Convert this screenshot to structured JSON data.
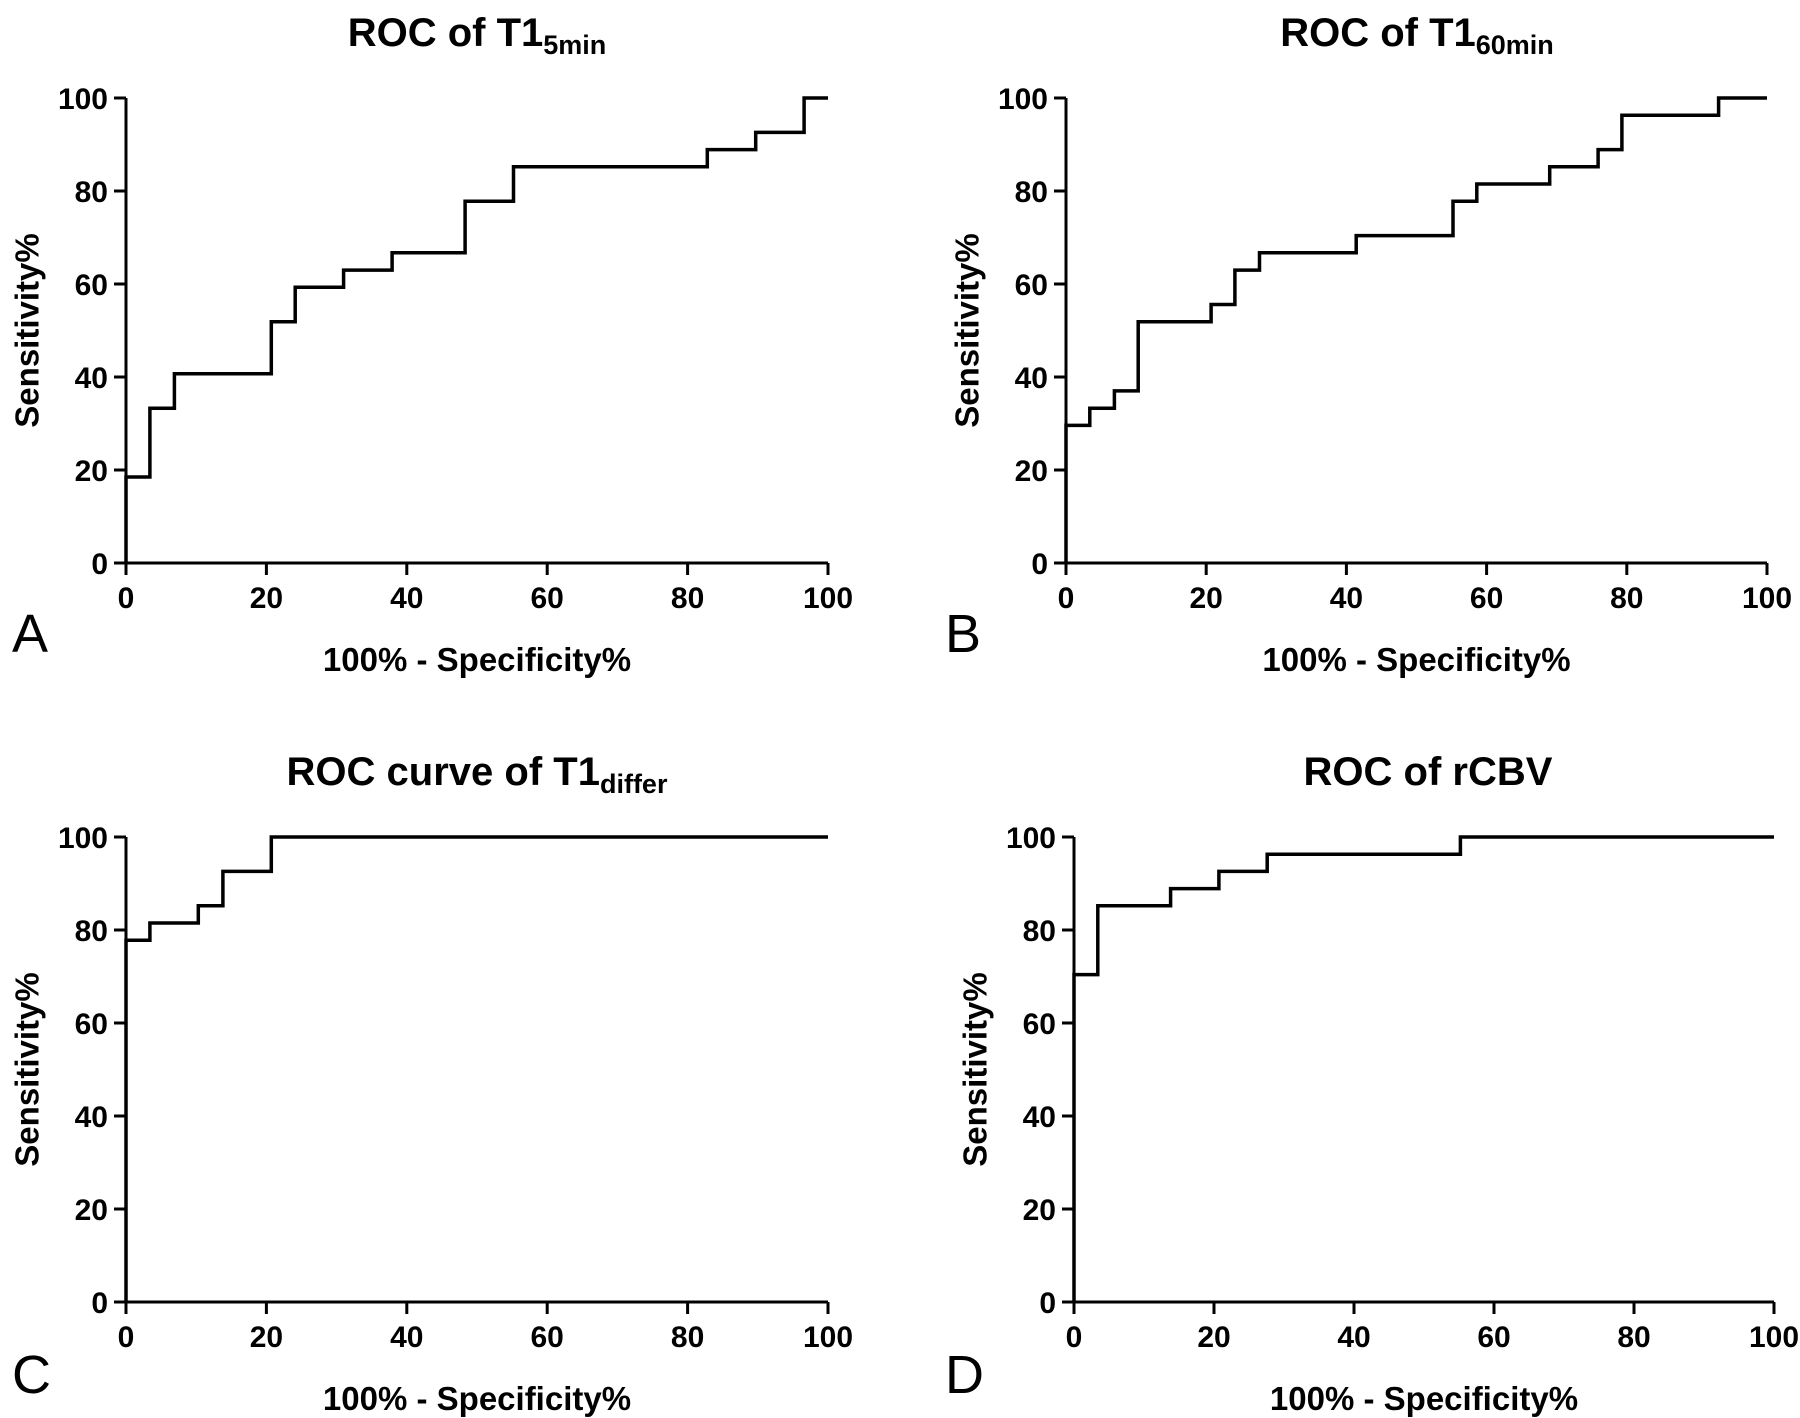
{
  "chart_data": [
    {
      "panel": "A",
      "type": "line",
      "title": "ROC of T1",
      "title_subscript": "5min",
      "xlabel": "100% - Specificity%",
      "ylabel": "Sensitivity%",
      "xlim": [
        0,
        100
      ],
      "ylim": [
        0,
        100
      ],
      "xticks": [
        "0",
        "20",
        "40",
        "60",
        "80",
        "100"
      ],
      "yticks": [
        "0",
        "20",
        "40",
        "60",
        "80",
        "100"
      ],
      "grid": false,
      "step": true,
      "x": [
        0,
        0,
        3.4,
        3.4,
        6.9,
        6.9,
        20.7,
        20.7,
        24.1,
        24.1,
        31.0,
        31.0,
        37.9,
        37.9,
        48.3,
        48.3,
        55.2,
        55.2,
        82.8,
        82.8,
        89.7,
        89.7,
        96.6,
        96.6,
        100
      ],
      "y": [
        0,
        18.5,
        18.5,
        33.3,
        33.3,
        40.7,
        40.7,
        51.9,
        51.9,
        59.3,
        59.3,
        63.0,
        63.0,
        66.7,
        66.7,
        77.8,
        77.8,
        85.2,
        85.2,
        88.9,
        88.9,
        92.6,
        92.6,
        100,
        100
      ]
    },
    {
      "panel": "B",
      "type": "line",
      "title": "ROC of T1",
      "title_subscript": "60min",
      "xlabel": "100% - Specificity%",
      "ylabel": "Sensitivity%",
      "xlim": [
        0,
        100
      ],
      "ylim": [
        0,
        100
      ],
      "xticks": [
        "0",
        "20",
        "40",
        "60",
        "80",
        "100"
      ],
      "yticks": [
        "0",
        "20",
        "40",
        "60",
        "80",
        "100"
      ],
      "grid": false,
      "step": true,
      "x": [
        0,
        0,
        3.4,
        3.4,
        6.9,
        6.9,
        10.3,
        10.3,
        20.7,
        20.7,
        24.1,
        24.1,
        27.6,
        27.6,
        41.4,
        41.4,
        55.2,
        55.2,
        58.6,
        58.6,
        69.0,
        69.0,
        75.9,
        75.9,
        79.3,
        79.3,
        93.1,
        93.1,
        100
      ],
      "y": [
        0,
        29.6,
        29.6,
        33.3,
        33.3,
        37.0,
        37.0,
        51.9,
        51.9,
        55.6,
        55.6,
        63.0,
        63.0,
        66.7,
        66.7,
        70.4,
        70.4,
        77.8,
        77.8,
        81.5,
        81.5,
        85.2,
        85.2,
        88.9,
        88.9,
        96.3,
        96.3,
        100,
        100
      ]
    },
    {
      "panel": "C",
      "type": "line",
      "title": "ROC curve of T1",
      "title_subscript": "differ",
      "xlabel": "100% - Specificity%",
      "ylabel": "Sensitivity%",
      "xlim": [
        0,
        100
      ],
      "ylim": [
        0,
        100
      ],
      "xticks": [
        "0",
        "20",
        "40",
        "60",
        "80",
        "100"
      ],
      "yticks": [
        "0",
        "20",
        "40",
        "60",
        "80",
        "100"
      ],
      "grid": false,
      "step": true,
      "x": [
        0,
        0,
        3.4,
        3.4,
        10.3,
        10.3,
        13.8,
        13.8,
        20.7,
        20.7,
        100
      ],
      "y": [
        0,
        77.8,
        77.8,
        81.5,
        81.5,
        85.2,
        85.2,
        92.6,
        92.6,
        100,
        100
      ]
    },
    {
      "panel": "D",
      "type": "line",
      "title": "ROC of rCBV",
      "title_subscript": "",
      "xlabel": "100% - Specificity%",
      "ylabel": "Sensitivity%",
      "xlim": [
        0,
        100
      ],
      "ylim": [
        0,
        100
      ],
      "xticks": [
        "0",
        "20",
        "40",
        "60",
        "80",
        "100"
      ],
      "yticks": [
        "0",
        "20",
        "40",
        "60",
        "80",
        "100"
      ],
      "grid": false,
      "step": true,
      "x": [
        0,
        0,
        3.4,
        3.4,
        13.8,
        13.8,
        20.7,
        20.7,
        27.6,
        27.6,
        55.2,
        55.2,
        100
      ],
      "y": [
        0,
        70.4,
        70.4,
        85.2,
        85.2,
        88.9,
        88.9,
        92.6,
        92.6,
        96.3,
        96.3,
        100,
        100
      ]
    }
  ]
}
